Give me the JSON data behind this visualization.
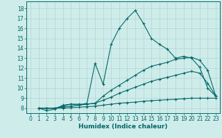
{
  "xlabel": "Humidex (Indice chaleur)",
  "ylabel": "",
  "xlim": [
    -0.5,
    23.5
  ],
  "ylim": [
    7.5,
    18.7
  ],
  "xticks": [
    0,
    1,
    2,
    3,
    4,
    5,
    6,
    7,
    8,
    9,
    10,
    11,
    12,
    13,
    14,
    15,
    16,
    17,
    18,
    19,
    20,
    21,
    22,
    23
  ],
  "yticks": [
    8,
    9,
    10,
    11,
    12,
    13,
    14,
    15,
    16,
    17,
    18
  ],
  "background_color": "#ceecea",
  "grid_color": "#b0d4d2",
  "line_color": "#006666",
  "lines": [
    {
      "x": [
        1,
        2,
        3,
        4,
        5,
        6,
        7,
        8,
        9,
        10,
        11,
        12,
        13,
        14,
        15,
        16,
        17,
        18,
        19,
        20,
        21,
        22,
        23
      ],
      "y": [
        8.0,
        7.75,
        7.9,
        8.3,
        8.4,
        8.3,
        8.5,
        12.5,
        10.4,
        14.4,
        16.0,
        17.0,
        17.8,
        16.5,
        15.0,
        14.4,
        13.9,
        13.0,
        13.2,
        13.0,
        12.1,
        10.0,
        9.2
      ]
    },
    {
      "x": [
        1,
        2,
        3,
        4,
        5,
        6,
        7,
        8,
        9,
        10,
        11,
        12,
        13,
        14,
        15,
        16,
        17,
        18,
        19,
        20,
        21,
        22,
        23
      ],
      "y": [
        8.0,
        8.0,
        8.0,
        8.2,
        8.4,
        8.4,
        8.4,
        8.5,
        9.2,
        9.8,
        10.3,
        10.8,
        11.3,
        11.8,
        12.2,
        12.4,
        12.6,
        12.9,
        13.0,
        13.1,
        12.8,
        11.8,
        9.2
      ]
    },
    {
      "x": [
        1,
        2,
        3,
        4,
        5,
        6,
        7,
        8,
        9,
        10,
        11,
        12,
        13,
        14,
        15,
        16,
        17,
        18,
        19,
        20,
        21,
        22,
        23
      ],
      "y": [
        8.0,
        8.0,
        8.0,
        8.1,
        8.2,
        8.3,
        8.4,
        8.5,
        8.8,
        9.1,
        9.5,
        9.8,
        10.1,
        10.4,
        10.7,
        10.9,
        11.1,
        11.3,
        11.5,
        11.7,
        11.5,
        10.5,
        9.2
      ]
    },
    {
      "x": [
        1,
        2,
        3,
        4,
        5,
        6,
        7,
        8,
        9,
        10,
        11,
        12,
        13,
        14,
        15,
        16,
        17,
        18,
        19,
        20,
        21,
        22,
        23
      ],
      "y": [
        8.0,
        8.0,
        8.0,
        8.0,
        8.05,
        8.1,
        8.15,
        8.2,
        8.3,
        8.4,
        8.5,
        8.55,
        8.6,
        8.7,
        8.75,
        8.8,
        8.85,
        8.9,
        8.95,
        9.0,
        9.0,
        9.0,
        9.0
      ]
    }
  ]
}
